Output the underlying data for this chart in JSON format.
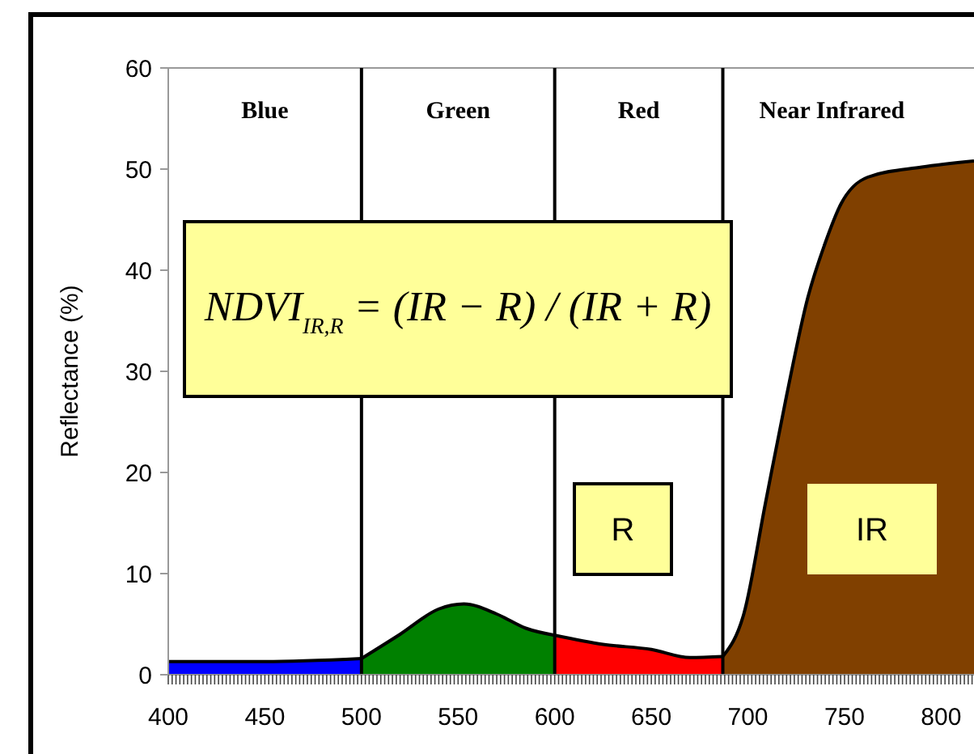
{
  "chart_data": {
    "type": "area",
    "ylabel": "Reflectance (%)",
    "xlim": [
      400,
      817
    ],
    "xticks": [
      400,
      450,
      500,
      550,
      600,
      650,
      700,
      750,
      800
    ],
    "ylim": [
      0,
      60
    ],
    "yticks": [
      0,
      10,
      20,
      30,
      40,
      50,
      60
    ],
    "grid": false,
    "series": [
      {
        "color": "#0000ff",
        "x": [
          400,
          450,
          500
        ],
        "values": [
          1.3,
          1.3,
          1.6
        ]
      },
      {
        "color": "#008000",
        "x": [
          500,
          520,
          540,
          553,
          570,
          585,
          600
        ],
        "values": [
          1.6,
          4.0,
          6.5,
          7.0,
          6.0,
          4.6,
          3.9
        ]
      },
      {
        "color": "#ff0000",
        "x": [
          600,
          625,
          650,
          670,
          687
        ],
        "values": [
          3.9,
          3.0,
          2.5,
          1.7,
          1.8
        ]
      },
      {
        "color": "#804000",
        "x": [
          687,
          698,
          709,
          720,
          731,
          740,
          748,
          762,
          790,
          817
        ],
        "values": [
          1.8,
          6.1,
          16.9,
          27.6,
          37.3,
          42.7,
          46.5,
          49.2,
          50.2,
          50.8
        ]
      }
    ],
    "ref_lines": [
      {
        "axis": "x",
        "value": 500,
        "color": "#000000"
      },
      {
        "axis": "x",
        "value": 600,
        "color": "#000000"
      },
      {
        "axis": "x",
        "value": 687,
        "color": "#000000"
      }
    ],
    "annotations": [
      "Blue",
      "Green",
      "Red",
      "Near Infrared",
      "NDVI$_{IR,R}$ = (IR − R) / (IR + R)",
      "R",
      "IR"
    ]
  }
}
